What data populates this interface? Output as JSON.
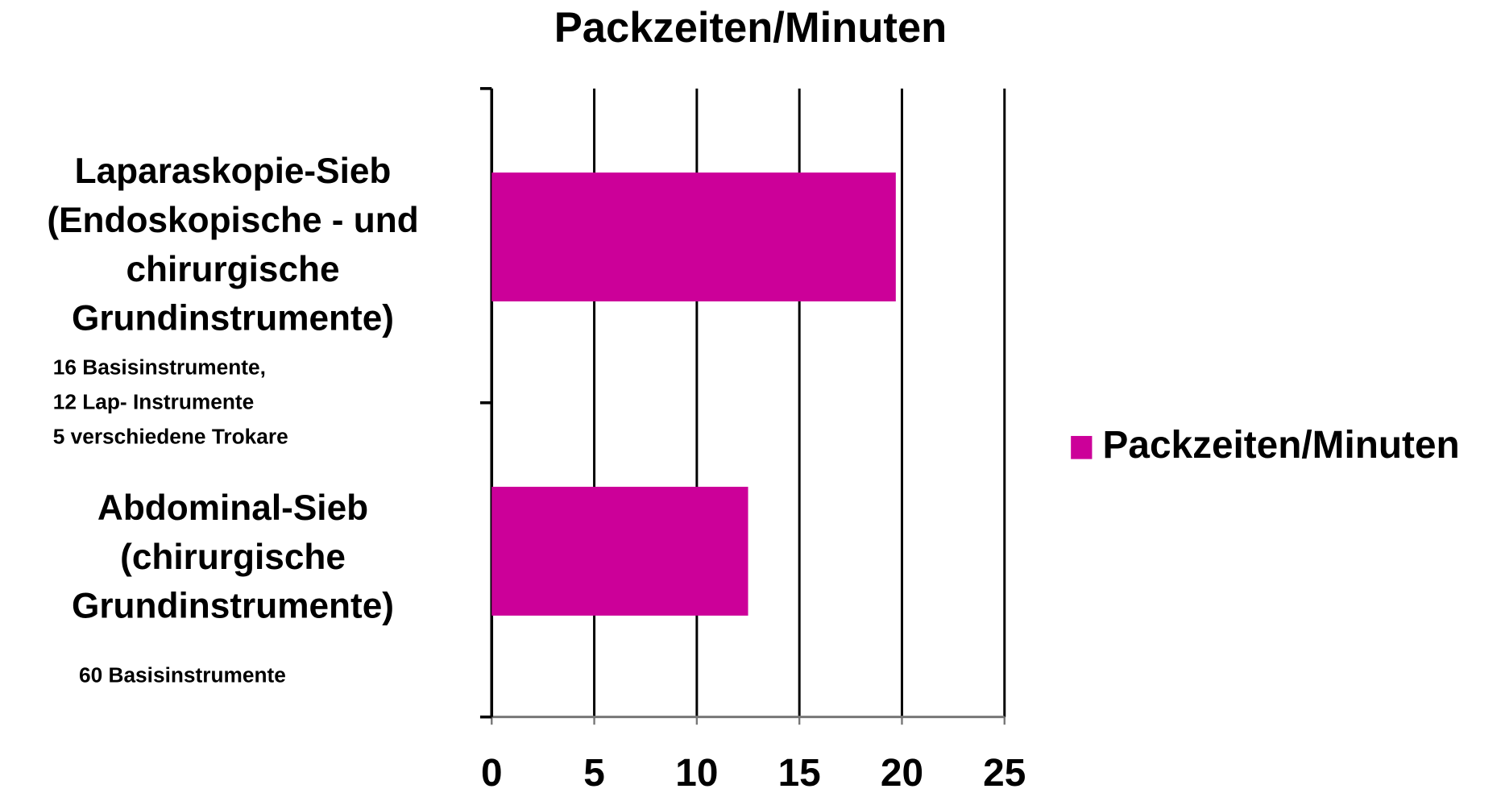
{
  "chart_data": {
    "type": "bar",
    "orientation": "horizontal",
    "title": "Packzeiten/Minuten",
    "categories": [
      "Laparaskopie-Sieb\n(Endoskopische - und\nchirurgische\nGrundinstrumente)",
      "Abdominal-Sieb\n(chirurgische\nGrundinstrumente)"
    ],
    "annotations": [
      "16 Basisinstrumente,\n12 Lap- Instrumente\n5 verschiedene Trokare",
      "60 Basisinstrumente"
    ],
    "series": [
      {
        "name": "Packzeiten/Minuten",
        "color": "#cc0099",
        "values": [
          19.7,
          12.5
        ]
      }
    ],
    "xlim": [
      0,
      25
    ],
    "xticks": [
      0,
      5,
      10,
      15,
      20,
      25
    ],
    "grid": true,
    "legend": "right"
  }
}
